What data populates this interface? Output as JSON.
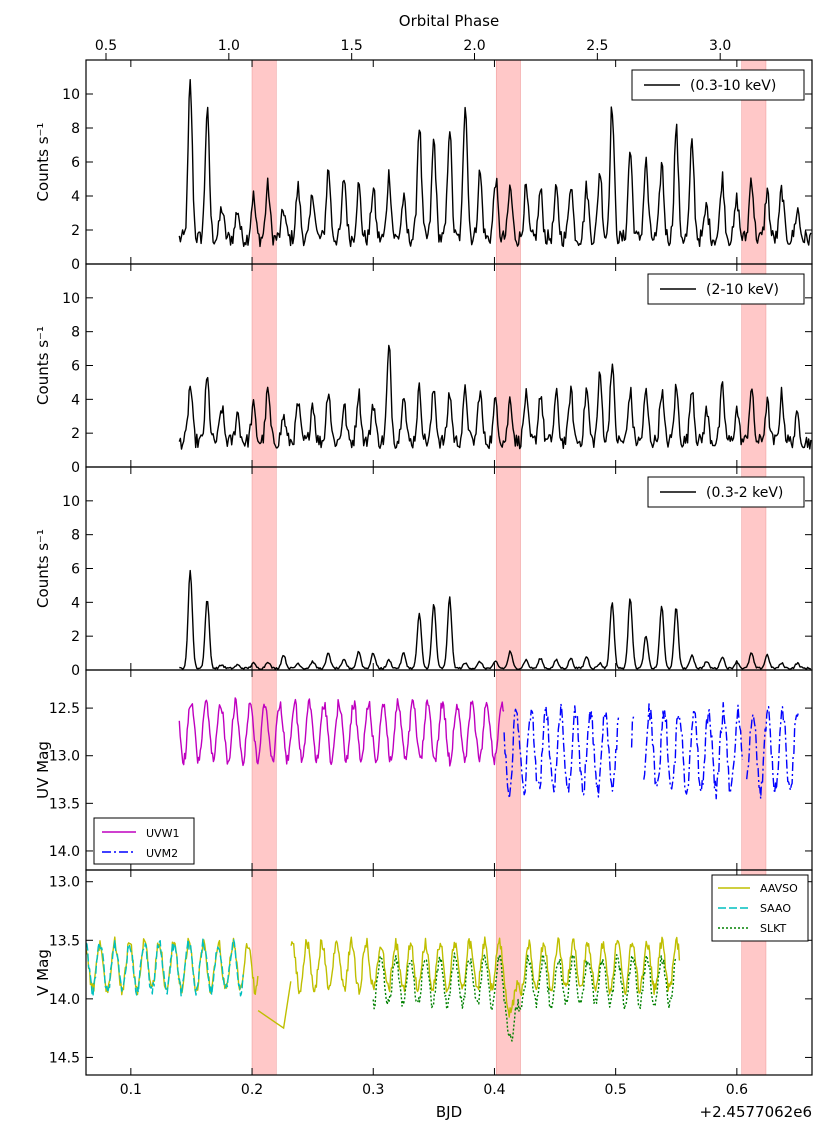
{
  "chart_data": {
    "type": "line",
    "title": "",
    "top_axis": {
      "label": "Orbital Phase",
      "ticks": [
        0.5,
        1.0,
        1.5,
        2.0,
        2.5,
        3.0
      ],
      "tick_labels": [
        "0.5",
        "1.0",
        "1.5",
        "2.0",
        "2.5",
        "3.0"
      ],
      "bjd_at_phase_0_5": 0.0795,
      "bjd_per_phase": 0.2027
    },
    "x_axis": {
      "label": "BJD",
      "offset_label": "+2.4577062e6",
      "xlim": [
        0.063,
        0.662
      ],
      "ticks": [
        0.1,
        0.2,
        0.3,
        0.4,
        0.5,
        0.6
      ],
      "tick_labels": [
        "0.1",
        "0.2",
        "0.3",
        "0.4",
        "0.5",
        "0.6"
      ]
    },
    "shaded_bands": [
      [
        0.2,
        0.22
      ],
      [
        0.4015,
        0.4215
      ],
      [
        0.604,
        0.624
      ]
    ],
    "band_color": "#ffc8c8",
    "panels": [
      {
        "id": "xray_full",
        "ylabel": "Counts s⁻¹",
        "ylim": [
          0,
          12
        ],
        "yticks": [
          0,
          2,
          4,
          6,
          8,
          10
        ],
        "ytick_labels": [
          "0",
          "2",
          "4",
          "6",
          "8",
          "10"
        ],
        "legend": [
          {
            "label": "(0.3-10 keV)",
            "color": "#000000",
            "style": "solid"
          }
        ],
        "series": [
          {
            "name": "(0.3-10 keV)",
            "color": "#000000",
            "style": "solid",
            "x_start": 0.14,
            "x_end": 0.662,
            "base": 1.5,
            "noise": 0.5,
            "peaks": [
              [
                0.149,
                10.6
              ],
              [
                0.163,
                9.0
              ],
              [
                0.175,
                3.3
              ],
              [
                0.188,
                3.2
              ],
              [
                0.201,
                4.0
              ],
              [
                0.213,
                4.6
              ],
              [
                0.226,
                3.2
              ],
              [
                0.238,
                4.5
              ],
              [
                0.25,
                4.2
              ],
              [
                0.263,
                5.6
              ],
              [
                0.276,
                5.1
              ],
              [
                0.288,
                4.6
              ],
              [
                0.3,
                4.4
              ],
              [
                0.313,
                5.3
              ],
              [
                0.325,
                3.8
              ],
              [
                0.338,
                8.2
              ],
              [
                0.35,
                7.3
              ],
              [
                0.363,
                8.1
              ],
              [
                0.376,
                9.6
              ],
              [
                0.388,
                5.4
              ],
              [
                0.401,
                5.0
              ],
              [
                0.413,
                4.5
              ],
              [
                0.426,
                4.4
              ],
              [
                0.438,
                4.3
              ],
              [
                0.451,
                4.3
              ],
              [
                0.463,
                4.8
              ],
              [
                0.476,
                4.5
              ],
              [
                0.487,
                5.5
              ],
              [
                0.497,
                9.3
              ],
              [
                0.512,
                6.7
              ],
              [
                0.525,
                6.0
              ],
              [
                0.538,
                5.9
              ],
              [
                0.55,
                8.0
              ],
              [
                0.563,
                7.1
              ],
              [
                0.575,
                3.4
              ],
              [
                0.588,
                5.1
              ],
              [
                0.6,
                3.8
              ],
              [
                0.612,
                5.1
              ],
              [
                0.625,
                4.3
              ],
              [
                0.637,
                4.4
              ],
              [
                0.65,
                3.2
              ]
            ]
          }
        ]
      },
      {
        "id": "xray_hard",
        "ylabel": "Counts s⁻¹",
        "ylim": [
          0,
          12
        ],
        "yticks": [
          0,
          2,
          4,
          6,
          8,
          10
        ],
        "ytick_labels": [
          "0",
          "2",
          "4",
          "6",
          "8",
          "10"
        ],
        "legend": [
          {
            "label": "(2-10 keV)",
            "color": "#000000",
            "style": "solid"
          }
        ],
        "series": [
          {
            "name": "(2-10 keV)",
            "color": "#000000",
            "style": "solid",
            "x_start": 0.14,
            "x_end": 0.662,
            "base": 1.5,
            "noise": 0.45,
            "peaks": [
              [
                0.149,
                4.8
              ],
              [
                0.163,
                5.2
              ],
              [
                0.175,
                3.5
              ],
              [
                0.188,
                3.2
              ],
              [
                0.201,
                3.6
              ],
              [
                0.213,
                4.5
              ],
              [
                0.226,
                3.0
              ],
              [
                0.238,
                3.7
              ],
              [
                0.25,
                3.8
              ],
              [
                0.263,
                4.6
              ],
              [
                0.276,
                3.6
              ],
              [
                0.288,
                4.4
              ],
              [
                0.3,
                3.8
              ],
              [
                0.313,
                7.0
              ],
              [
                0.325,
                4.5
              ],
              [
                0.338,
                4.6
              ],
              [
                0.35,
                4.6
              ],
              [
                0.363,
                4.4
              ],
              [
                0.376,
                4.5
              ],
              [
                0.388,
                4.5
              ],
              [
                0.401,
                4.0
              ],
              [
                0.413,
                4.1
              ],
              [
                0.426,
                4.2
              ],
              [
                0.438,
                4.4
              ],
              [
                0.451,
                4.3
              ],
              [
                0.463,
                4.5
              ],
              [
                0.476,
                4.6
              ],
              [
                0.487,
                5.4
              ],
              [
                0.497,
                6.1
              ],
              [
                0.512,
                4.5
              ],
              [
                0.525,
                4.4
              ],
              [
                0.538,
                4.5
              ],
              [
                0.55,
                4.7
              ],
              [
                0.563,
                4.8
              ],
              [
                0.575,
                3.3
              ],
              [
                0.588,
                4.7
              ],
              [
                0.6,
                3.4
              ],
              [
                0.612,
                4.6
              ],
              [
                0.625,
                3.8
              ],
              [
                0.637,
                4.3
              ],
              [
                0.65,
                3.0
              ]
            ]
          }
        ]
      },
      {
        "id": "xray_soft",
        "ylabel": "Counts s⁻¹",
        "ylim": [
          0,
          12
        ],
        "yticks": [
          0,
          2,
          4,
          6,
          8,
          10
        ],
        "ytick_labels": [
          "0",
          "2",
          "4",
          "6",
          "8",
          "10"
        ],
        "legend": [
          {
            "label": "(0.3-2 keV)",
            "color": "#000000",
            "style": "solid"
          }
        ],
        "series": [
          {
            "name": "(0.3-2 keV)",
            "color": "#000000",
            "style": "solid",
            "x_start": 0.14,
            "x_end": 0.662,
            "base": 0.1,
            "noise": 0.06,
            "peaks": [
              [
                0.149,
                5.9
              ],
              [
                0.163,
                4.2
              ],
              [
                0.175,
                0.3
              ],
              [
                0.188,
                0.3
              ],
              [
                0.201,
                0.4
              ],
              [
                0.213,
                0.5
              ],
              [
                0.226,
                0.9
              ],
              [
                0.238,
                0.4
              ],
              [
                0.25,
                0.5
              ],
              [
                0.263,
                1.0
              ],
              [
                0.276,
                0.6
              ],
              [
                0.288,
                1.1
              ],
              [
                0.3,
                1.0
              ],
              [
                0.313,
                0.6
              ],
              [
                0.325,
                1.0
              ],
              [
                0.338,
                3.3
              ],
              [
                0.35,
                3.9
              ],
              [
                0.363,
                4.3
              ],
              [
                0.376,
                0.4
              ],
              [
                0.388,
                0.5
              ],
              [
                0.401,
                0.5
              ],
              [
                0.413,
                1.1
              ],
              [
                0.426,
                0.6
              ],
              [
                0.438,
                0.7
              ],
              [
                0.451,
                0.6
              ],
              [
                0.463,
                0.7
              ],
              [
                0.476,
                0.8
              ],
              [
                0.487,
                0.4
              ],
              [
                0.497,
                4.0
              ],
              [
                0.512,
                4.3
              ],
              [
                0.525,
                2.0
              ],
              [
                0.538,
                3.8
              ],
              [
                0.55,
                3.7
              ],
              [
                0.563,
                0.9
              ],
              [
                0.575,
                0.5
              ],
              [
                0.588,
                0.8
              ],
              [
                0.6,
                0.5
              ],
              [
                0.612,
                1.0
              ],
              [
                0.625,
                0.9
              ],
              [
                0.637,
                0.4
              ],
              [
                0.65,
                0.4
              ]
            ]
          }
        ]
      },
      {
        "id": "uv",
        "ylabel": "UV Mag",
        "ylim": [
          14.2,
          12.1
        ],
        "inverted": true,
        "yticks": [
          12.5,
          13.0,
          13.5,
          14.0
        ],
        "ytick_labels": [
          "12.5",
          "13.0",
          "13.5",
          "14.0"
        ],
        "legend_position": "lower-left",
        "legend": [
          {
            "label": "UVW1",
            "color": "#bf00bf",
            "style": "solid"
          },
          {
            "label": "UVM2",
            "color": "#0000ff",
            "style": "dashdot"
          }
        ],
        "series": [
          {
            "name": "UVW1",
            "color": "#bf00bf",
            "style": "solid",
            "x_start": 0.14,
            "x_end": 0.408,
            "mean": 12.75,
            "amp": 0.3,
            "noise": 0.06,
            "period": 0.0122
          },
          {
            "name": "UVM2",
            "color": "#0000ff",
            "style": "dashdot",
            "x_start": 0.408,
            "x_end": 0.651,
            "mean": 12.95,
            "amp": 0.42,
            "noise": 0.09,
            "period": 0.0122,
            "gaps": [
              [
                0.503,
                0.513
              ],
              [
                0.516,
                0.523
              ],
              [
                0.605,
                0.608
              ]
            ]
          }
        ]
      },
      {
        "id": "optical",
        "ylabel": "V Mag",
        "ylim": [
          14.65,
          12.9
        ],
        "inverted": true,
        "yticks": [
          13.0,
          13.5,
          14.0,
          14.5
        ],
        "ytick_labels": [
          "13.0",
          "13.5",
          "14.0",
          "14.5"
        ],
        "legend_position": "upper-right",
        "legend": [
          {
            "label": "AAVSO",
            "color": "#bfbf00",
            "style": "solid"
          },
          {
            "label": "SAAO",
            "color": "#00bfbf",
            "style": "dashed"
          },
          {
            "label": "SLKT",
            "color": "#008000",
            "style": "dotted"
          }
        ],
        "series": [
          {
            "name": "AAVSO",
            "color": "#bfbf00",
            "style": "solid",
            "x_start": 0.063,
            "x_end": 0.553,
            "mean": 13.72,
            "amp": 0.2,
            "noise": 0.05,
            "period": 0.0122,
            "bridges": [
              [
                0.205,
                14.1,
                0.226,
                14.25,
                0.232,
                13.85
              ]
            ]
          },
          {
            "name": "SAAO",
            "color": "#00bfbf",
            "style": "dashed",
            "x_start": 0.063,
            "x_end": 0.193,
            "mean": 13.73,
            "amp": 0.2,
            "noise": 0.05,
            "period": 0.0122
          },
          {
            "name": "SLKT",
            "color": "#008000",
            "style": "dotted",
            "x_start": 0.3,
            "x_end": 0.55,
            "mean": 13.85,
            "amp": 0.2,
            "noise": 0.05,
            "period": 0.0122,
            "dip": [
              0.415,
              14.45
            ]
          }
        ]
      }
    ]
  }
}
